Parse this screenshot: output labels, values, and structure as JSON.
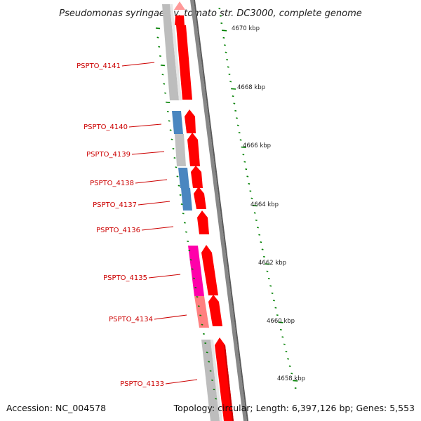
{
  "title": "Pseudomonas syringae pv. tomato str. DC3000, complete genome",
  "accession": "Accession: NC_004578",
  "topology": "Topology: circular; Length: 6,397,126 bp; Genes: 5,553",
  "colors": {
    "backbone": "#888888",
    "cds": "#ff0000",
    "cds_faded": "#ff9999",
    "ticks": "#008000",
    "label": "#cc0000",
    "grey_feature": "#c0c0c0",
    "blue_feature": "#4a86c0",
    "magenta_feature": "#ff00aa",
    "pink_feature": "#ff8080"
  },
  "genes": [
    {
      "name": "PSPTO_4141"
    },
    {
      "name": "PSPTO_4140"
    },
    {
      "name": "PSPTO_4139"
    },
    {
      "name": "PSPTO_4138"
    },
    {
      "name": "PSPTO_4137"
    },
    {
      "name": "PSPTO_4136"
    },
    {
      "name": "PSPTO_4135"
    },
    {
      "name": "PSPTO_4134"
    },
    {
      "name": "PSPTO_4133"
    }
  ],
  "scale_labels": [
    "4670 kbp",
    "4668 kbp",
    "4666 kbp",
    "4664 kbp",
    "4662 kbp",
    "4660 kbp",
    "4658 kbp"
  ]
}
